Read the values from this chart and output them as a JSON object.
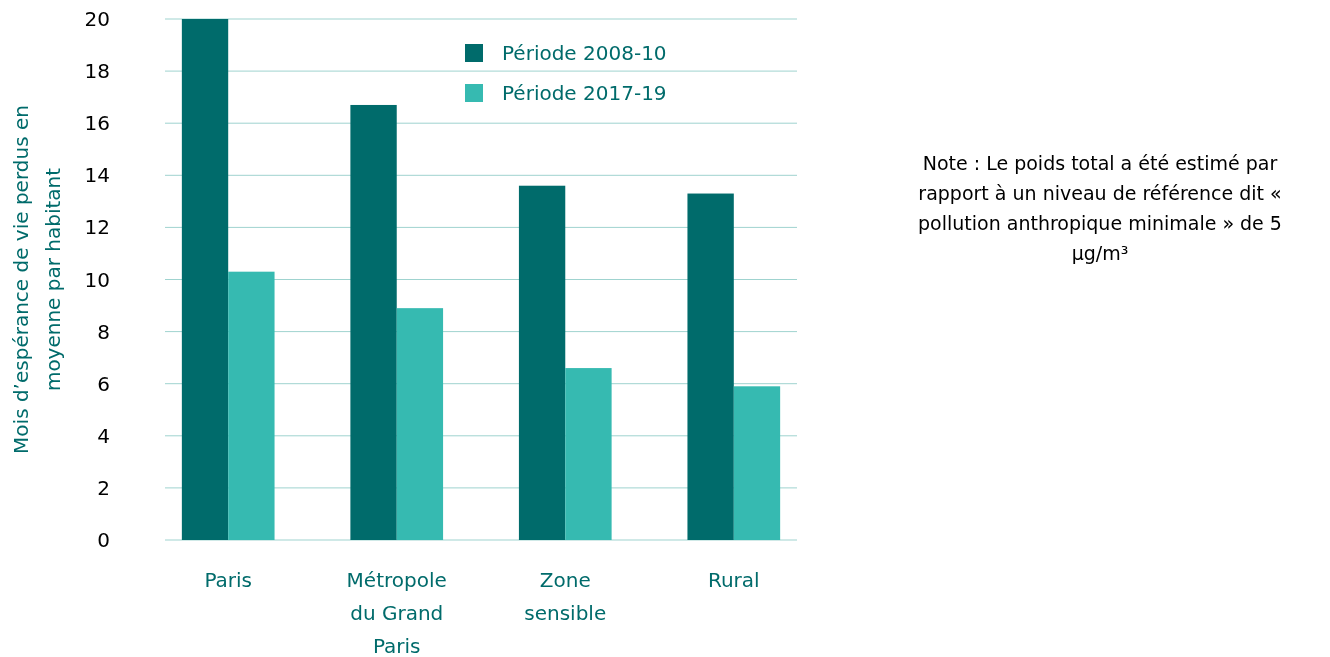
{
  "chart_data": {
    "type": "bar",
    "ylabel": "Mois d’espérance de vie perdus en moyenne par habitant",
    "categories": [
      "Paris",
      "Métropole du Grand Paris",
      "Zone sensible",
      "Rural"
    ],
    "series": [
      {
        "name": "Période 2008-10",
        "color": "#006b6b",
        "values": [
          20,
          16.7,
          13.6,
          13.3
        ]
      },
      {
        "name": "Période 2017-19",
        "color": "#36bab1",
        "values": [
          10.3,
          8.9,
          6.6,
          5.9
        ]
      }
    ],
    "ylim": [
      0,
      20
    ],
    "yticks": [
      0,
      2,
      4,
      6,
      8,
      10,
      12,
      14,
      16,
      18,
      20
    ],
    "grid": "y",
    "legend": "top right",
    "annotations": [
      "Note : Le poids total a été estimé par rapport à un niveau de référence dit « pollution anthropique minimale » de 5 µg/m³"
    ]
  }
}
